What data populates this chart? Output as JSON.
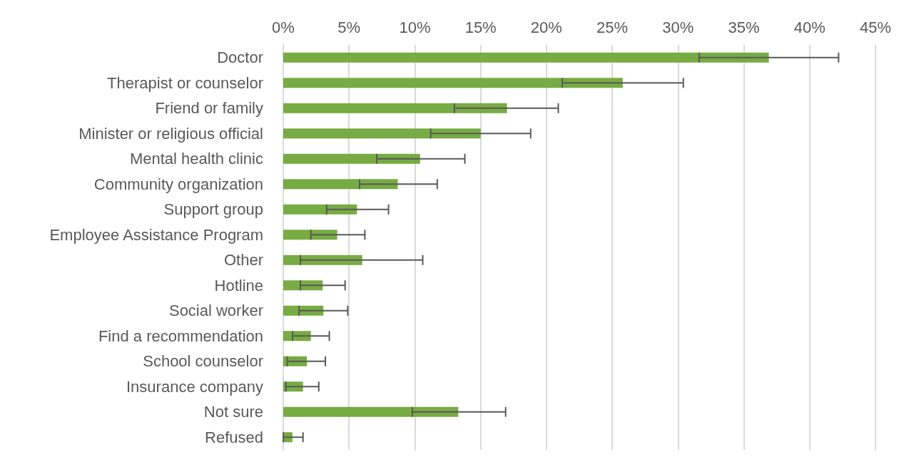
{
  "chart_data": {
    "type": "bar",
    "orientation": "horizontal",
    "categories": [
      "Doctor",
      "Therapist or counselor",
      "Friend or family",
      "Minister or religious official",
      "Mental health clinic",
      "Community organization",
      "Support group",
      "Employee Assistance Program",
      "Other",
      "Hotline",
      "Social worker",
      "Find a recommendation",
      "School counselor",
      "Insurance company",
      "Not sure",
      "Refused"
    ],
    "values": [
      36.9,
      25.8,
      17.0,
      15.0,
      10.4,
      8.7,
      5.6,
      4.1,
      6.0,
      3.0,
      3.05,
      2.1,
      1.8,
      1.5,
      13.3,
      0.7
    ],
    "errors": [
      [
        31.6,
        42.2
      ],
      [
        21.2,
        30.4
      ],
      [
        13.0,
        20.9
      ],
      [
        11.2,
        18.8
      ],
      [
        7.1,
        13.8
      ],
      [
        5.8,
        11.7
      ],
      [
        3.3,
        8.0
      ],
      [
        2.1,
        6.2
      ],
      [
        1.3,
        10.6
      ],
      [
        1.3,
        4.7
      ],
      [
        1.2,
        4.9
      ],
      [
        0.7,
        3.5
      ],
      [
        0.3,
        3.2
      ],
      [
        0.2,
        2.7
      ],
      [
        9.8,
        16.9
      ],
      [
        0,
        1.5
      ]
    ],
    "color": "#77ab43",
    "xlim": [
      0,
      45
    ],
    "xticks": [
      {
        "value": 0,
        "label": "0%"
      },
      {
        "value": 5,
        "label": "5%"
      },
      {
        "value": 10,
        "label": "10%"
      },
      {
        "value": 15,
        "label": "15%"
      },
      {
        "value": 20,
        "label": "20%"
      },
      {
        "value": 25,
        "label": "25%"
      },
      {
        "value": 30,
        "label": "30%"
      },
      {
        "value": 35,
        "label": "35%"
      },
      {
        "value": 40,
        "label": "40%"
      },
      {
        "value": 45,
        "label": "45%"
      }
    ],
    "grid": "x"
  }
}
